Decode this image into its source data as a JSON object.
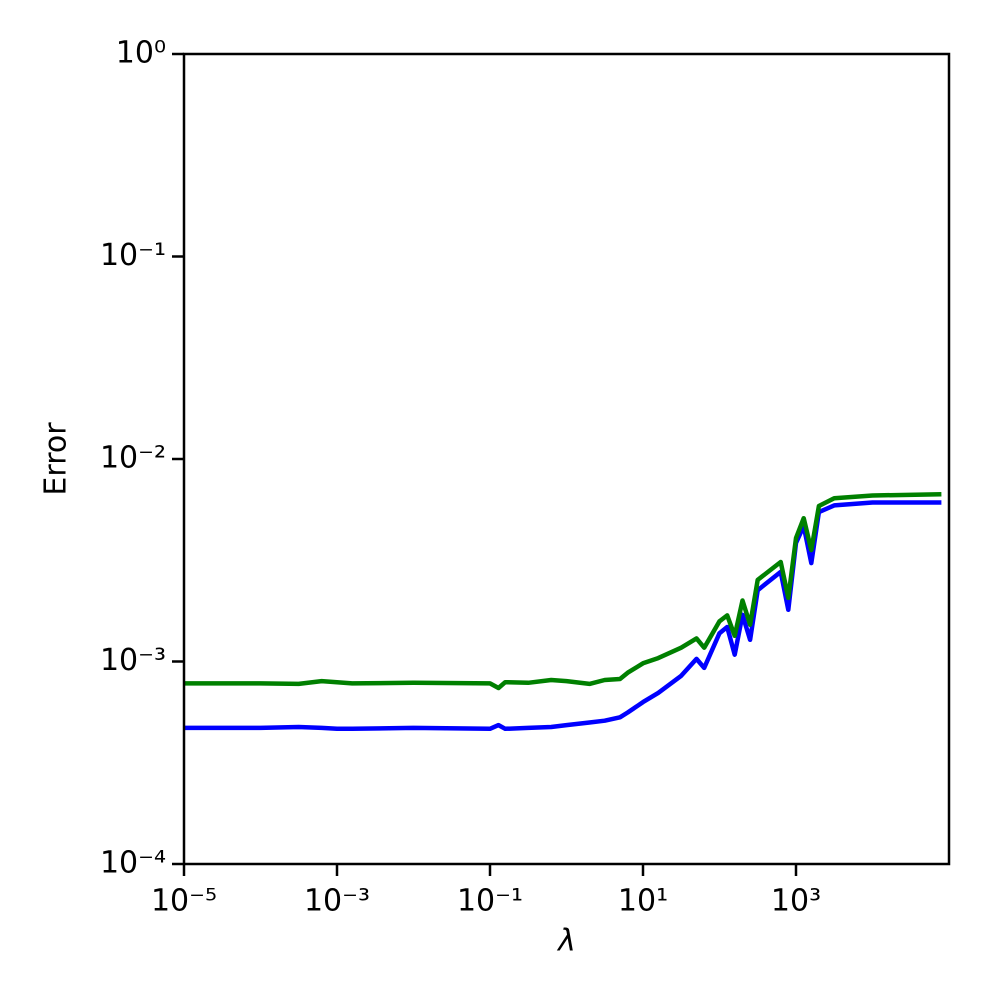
{
  "chart_data": {
    "type": "line",
    "xlabel": "λ",
    "ylabel": "Error",
    "log_x": true,
    "log_y": true,
    "grid": false,
    "x": [
      1e-05,
      0.0001,
      0.000316,
      0.000631,
      0.001,
      0.00158,
      0.01,
      0.1,
      0.129,
      0.158,
      0.316,
      0.631,
      1,
      2.0,
      3.16,
      5.01,
      6.31,
      10,
      15.8,
      31.6,
      50.1,
      63.1,
      100,
      126,
      158,
      200,
      251,
      316,
      631,
      794,
      1000,
      1259,
      1585,
      1995,
      3162,
      10000,
      79433
    ],
    "series": [
      {
        "color": "#0000ff",
        "values": [
          0.00047,
          0.00047,
          0.000475,
          0.00047,
          0.000465,
          0.000465,
          0.00047,
          0.000465,
          0.000485,
          0.000465,
          0.00047,
          0.000475,
          0.000485,
          0.0005,
          0.00051,
          0.00053,
          0.00056,
          0.00063,
          0.0007,
          0.00085,
          0.00103,
          0.00093,
          0.00138,
          0.00148,
          0.00108,
          0.0017,
          0.00128,
          0.00225,
          0.00277,
          0.0018,
          0.00385,
          0.00467,
          0.00306,
          0.00547,
          0.0059,
          0.0061,
          0.0061
        ]
      },
      {
        "color": "#008000",
        "values": [
          0.00078,
          0.00078,
          0.000775,
          0.0008,
          0.00079,
          0.00078,
          0.000785,
          0.00078,
          0.00074,
          0.00079,
          0.000785,
          0.00081,
          0.0008,
          0.000775,
          0.00081,
          0.00082,
          0.00088,
          0.00098,
          0.00104,
          0.00117,
          0.0013,
          0.00117,
          0.00158,
          0.00169,
          0.00134,
          0.002,
          0.00152,
          0.00253,
          0.0031,
          0.00206,
          0.00407,
          0.0051,
          0.00355,
          0.00586,
          0.0064,
          0.0066,
          0.0067
        ]
      }
    ],
    "xlim": [
      1e-05,
      100000.0
    ],
    "xticks": [
      {
        "value": 1e-05,
        "label": "10⁻⁵"
      },
      {
        "value": 0.001,
        "label": "10⁻³"
      },
      {
        "value": 0.1,
        "label": "10⁻¹"
      },
      {
        "value": 10,
        "label": "10¹"
      },
      {
        "value": 1000,
        "label": "10³"
      }
    ],
    "ylim": [
      0.0001,
      1
    ],
    "yticks": [
      {
        "value": 0.0001,
        "label": "10⁻⁴"
      },
      {
        "value": 0.001,
        "label": "10⁻³"
      },
      {
        "value": 0.01,
        "label": "10⁻²"
      },
      {
        "value": 0.1,
        "label": "10⁻¹"
      },
      {
        "value": 1,
        "label": "10⁰"
      }
    ]
  }
}
